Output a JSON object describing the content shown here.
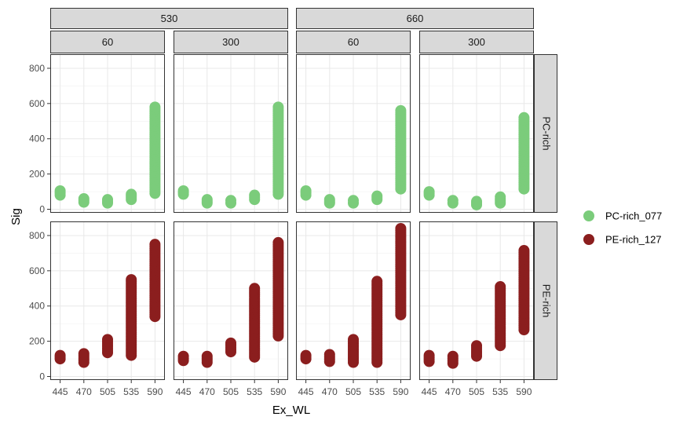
{
  "chart_data": {
    "type": "scatter",
    "xlabel": "Ex_WL",
    "ylabel": "Sig",
    "x_categories": [
      "445",
      "470",
      "505",
      "535",
      "590"
    ],
    "y_ticks": [
      0,
      200,
      400,
      600,
      800
    ],
    "ylim": [
      -20,
      880
    ],
    "grid": true,
    "legend_position": "right",
    "column_facets": [
      {
        "top": "530",
        "sub": "60"
      },
      {
        "top": "530",
        "sub": "300"
      },
      {
        "top": "660",
        "sub": "60"
      },
      {
        "top": "660",
        "sub": "300"
      }
    ],
    "row_facets": [
      "PC-rich",
      "PE-rich"
    ],
    "series": [
      {
        "name": "PC-rich_077",
        "row": "PC-rich",
        "color": "#7bcc7b"
      },
      {
        "name": "PE-rich_127",
        "row": "PE-rich",
        "color": "#8b1e1e"
      }
    ],
    "panels": [
      {
        "row": "PC-rich",
        "col": 0,
        "ranges": [
          [
            80,
            105
          ],
          [
            40,
            60
          ],
          [
            35,
            55
          ],
          [
            55,
            85
          ],
          [
            90,
            580
          ]
        ]
      },
      {
        "row": "PC-rich",
        "col": 1,
        "ranges": [
          [
            85,
            105
          ],
          [
            35,
            55
          ],
          [
            35,
            50
          ],
          [
            55,
            80
          ],
          [
            85,
            580
          ]
        ]
      },
      {
        "row": "PC-rich",
        "col": 2,
        "ranges": [
          [
            80,
            105
          ],
          [
            35,
            55
          ],
          [
            35,
            50
          ],
          [
            55,
            75
          ],
          [
            115,
            560
          ]
        ]
      },
      {
        "row": "PC-rich",
        "col": 3,
        "ranges": [
          [
            80,
            100
          ],
          [
            35,
            50
          ],
          [
            25,
            45
          ],
          [
            35,
            70
          ],
          [
            115,
            520
          ]
        ]
      },
      {
        "row": "PE-rich",
        "col": 0,
        "ranges": [
          [
            100,
            120
          ],
          [
            80,
            130
          ],
          [
            135,
            210
          ],
          [
            120,
            550
          ],
          [
            340,
            750
          ]
        ]
      },
      {
        "row": "PE-rich",
        "col": 1,
        "ranges": [
          [
            90,
            115
          ],
          [
            80,
            115
          ],
          [
            140,
            190
          ],
          [
            110,
            500
          ],
          [
            230,
            760
          ]
        ]
      },
      {
        "row": "PE-rich",
        "col": 2,
        "ranges": [
          [
            100,
            120
          ],
          [
            85,
            125
          ],
          [
            80,
            210
          ],
          [
            80,
            540
          ],
          [
            350,
            840
          ]
        ]
      },
      {
        "row": "PE-rich",
        "col": 3,
        "ranges": [
          [
            85,
            120
          ],
          [
            75,
            115
          ],
          [
            115,
            175
          ],
          [
            175,
            510
          ],
          [
            265,
            715
          ]
        ]
      }
    ]
  }
}
